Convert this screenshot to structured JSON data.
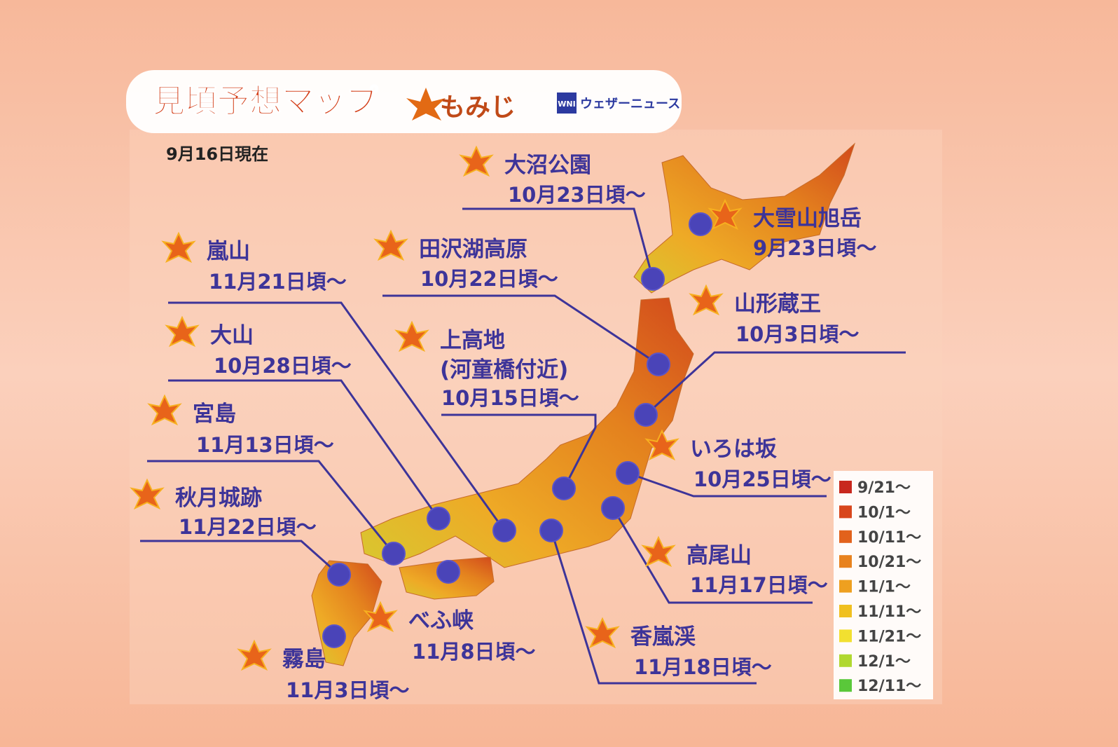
{
  "header": {
    "title": "見頃予想マップ",
    "subtitle": "もみじ",
    "logo": "WNI",
    "brand": "ウェザーニュース"
  },
  "date": "9月16日現在",
  "locations": [
    {
      "name": "大沼公園",
      "date": "10月23日頃～"
    },
    {
      "name": "大雪山旭岳",
      "date": "9月23日頃～"
    },
    {
      "name": "嵐山",
      "date": "11月21日頃～"
    },
    {
      "name": "田沢湖高原",
      "date": "10月22日頃～"
    },
    {
      "name": "山形蔵王",
      "date": "10月3日頃～"
    },
    {
      "name": "大山",
      "date": "10月28日頃～"
    },
    {
      "name": "上高地",
      "note": "(河童橋付近)",
      "date": "10月15日頃～"
    },
    {
      "name": "宮島",
      "date": "11月13日頃～"
    },
    {
      "name": "いろは坂",
      "date": "10月25日頃～"
    },
    {
      "name": "秋月城跡",
      "date": "11月22日頃～"
    },
    {
      "name": "高尾山",
      "date": "11月17日頃～"
    },
    {
      "name": "べふ峡",
      "date": "11月8日頃～"
    },
    {
      "name": "香嵐渓",
      "date": "11月18日頃～"
    },
    {
      "name": "霧島",
      "date": "11月3日頃～"
    }
  ],
  "legend": [
    {
      "label": "9/21～",
      "color": "#c8281e"
    },
    {
      "label": "10/1～",
      "color": "#d8461c"
    },
    {
      "label": "10/11～",
      "color": "#e2621c"
    },
    {
      "label": "10/21～",
      "color": "#e8821e"
    },
    {
      "label": "11/1～",
      "color": "#eea020"
    },
    {
      "label": "11/11～",
      "color": "#f0c020"
    },
    {
      "label": "11/21～",
      "color": "#f2e030"
    },
    {
      "label": "12/1～",
      "color": "#b0d830"
    },
    {
      "label": "12/11～",
      "color": "#5ac83a"
    }
  ]
}
